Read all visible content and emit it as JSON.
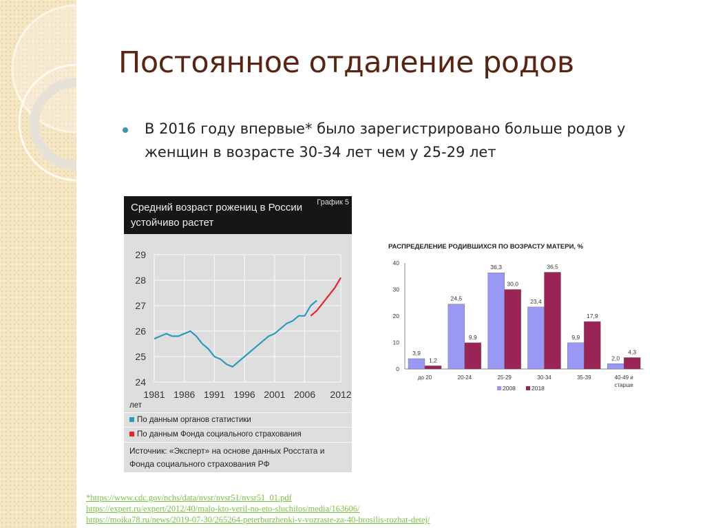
{
  "slide": {
    "title": "Постоянное отдаление родов",
    "bullet": "В 2016 году впервые* было зарегистрировано больше родов у женщин в возрасте 30-34 лет чем у 25-29 лет",
    "links": [
      "*https://www.cdc.gov/nchs/data/nvsr/nvsr51/nvsr51_01.pdf",
      "https://expert.ru/expert/2012/40/malo-kto-veril-no-eto-sluchilos/media/163606/",
      "https://moika78.ru/news/2019-07-30/265264-peterburzhenki-v-vozraste-za-40-brosilis-rozhat-detej/"
    ],
    "colors": {
      "title": "#5a2414",
      "bullet": "#3a96ae",
      "link": "#7ac142"
    }
  },
  "chart_data": [
    {
      "type": "line",
      "title": "Средний возраст рожениц в России устойчиво растет",
      "tag": "График 5",
      "xlabel": "",
      "ylabel": "лет",
      "xlim": [
        1981,
        2012
      ],
      "ylim": [
        24,
        29
      ],
      "xticks": [
        "1981",
        "1986",
        "1991",
        "1996",
        "2001",
        "2006",
        "2012"
      ],
      "yticks": [
        "24",
        "25",
        "26",
        "27",
        "28",
        "29"
      ],
      "grid": true,
      "legend_placement": "bottom",
      "series": [
        {
          "name": "По данным органов статистики",
          "color": "#2b9ac0",
          "x": [
            1981,
            1982,
            1983,
            1984,
            1985,
            1986,
            1987,
            1988,
            1989,
            1990,
            1991,
            1992,
            1993,
            1994,
            1995,
            1996,
            1997,
            1998,
            1999,
            2000,
            2001,
            2002,
            2003,
            2004,
            2005,
            2006,
            2007,
            2008
          ],
          "y": [
            25.7,
            25.8,
            25.9,
            25.8,
            25.8,
            25.9,
            26.0,
            25.8,
            25.5,
            25.3,
            25.0,
            24.9,
            24.7,
            24.6,
            24.8,
            25.0,
            25.2,
            25.4,
            25.6,
            25.8,
            25.9,
            26.1,
            26.3,
            26.4,
            26.6,
            26.6,
            27.0,
            27.2
          ]
        },
        {
          "name": "По данным Фонда социального страхования",
          "color": "#e0262b",
          "x": [
            2007,
            2008,
            2009,
            2010,
            2011,
            2012
          ],
          "y": [
            26.6,
            26.8,
            27.1,
            27.4,
            27.7,
            28.1
          ]
        }
      ],
      "source": "Источник: «Эксперт» на основе данных Росстата и Фонда социального страхования РФ"
    },
    {
      "type": "bar",
      "title": "РАСПРЕДЕЛЕНИЕ РОДИВШИХСЯ ПО ВОЗРАСТУ МАТЕРИ, %",
      "categories": [
        "до 20",
        "20-24",
        "25-29",
        "30-34",
        "35-39",
        "40-49 и старше"
      ],
      "ylim": [
        0,
        40
      ],
      "yticks": [
        "0",
        "10",
        "20",
        "30",
        "40"
      ],
      "grid": false,
      "legend_placement": "bottom",
      "series": [
        {
          "name": "2008",
          "color": "#9999f5",
          "values": [
            3.9,
            24.5,
            36.3,
            23.4,
            9.9,
            2.0
          ],
          "labels": [
            "3,9",
            "24,5",
            "36,3",
            "23,4",
            "9,9",
            "2,0"
          ]
        },
        {
          "name": "2018",
          "color": "#9b2457",
          "values": [
            1.2,
            9.9,
            30.0,
            36.5,
            17.9,
            4.3
          ],
          "labels": [
            "1,2",
            "9,9",
            "30,0",
            "36,5",
            "17,9",
            "4,3"
          ]
        }
      ]
    }
  ]
}
